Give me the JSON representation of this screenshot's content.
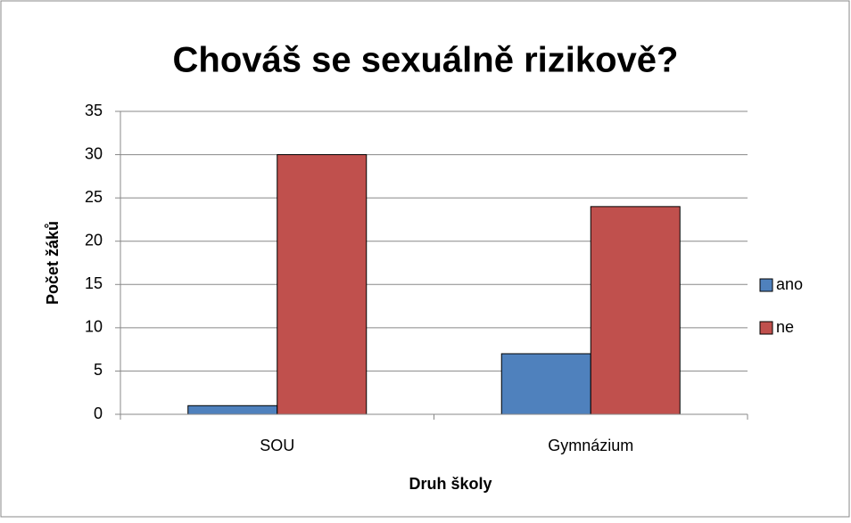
{
  "chart_data": {
    "type": "bar",
    "title": "Chováš se sexuálně rizikově?",
    "xlabel": "Druh školy",
    "ylabel": "Počet žáků",
    "categories": [
      "SOU",
      "Gymnázium"
    ],
    "series": [
      {
        "name": "ano",
        "color": "#4f81bd",
        "values": [
          1,
          7
        ]
      },
      {
        "name": "ne",
        "color": "#c0504d",
        "values": [
          30,
          24
        ]
      }
    ],
    "ylim": [
      0,
      35
    ],
    "yticks": [
      0,
      5,
      10,
      15,
      20,
      25,
      30,
      35
    ],
    "grid": true,
    "legend": "right"
  }
}
